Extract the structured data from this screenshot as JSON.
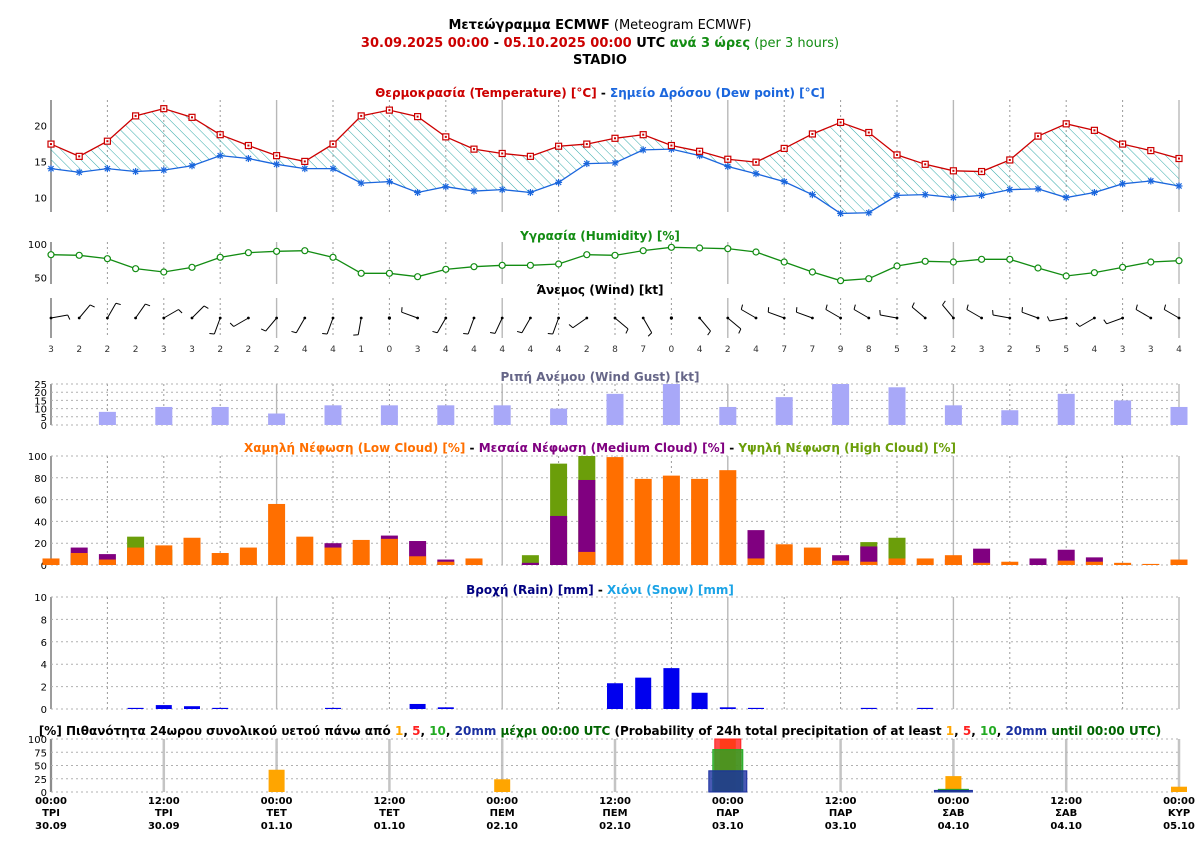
{
  "header": {
    "line1_bold": "Μετεώγραμμα ECMWF",
    "line1_rest": " (Meteogram ECMWF)",
    "date_from": "30.09.2025 00:00",
    "date_sep": " - ",
    "date_to": "05.10.2025 00:00",
    "utc": " UTC ",
    "step_bold": "ανά 3 ώρες",
    "step_rest": " (per 3 hours)",
    "station": "STADIO"
  },
  "colors": {
    "temperature": "#cc0000",
    "dew_point": "#1a66dd",
    "hatch": "#33aaaa",
    "humidity": "#128c12",
    "gust": "#a8a8f8",
    "low_cloud": "#ff6f00",
    "medium_cloud": "#800080",
    "high_cloud": "#6b9e0a",
    "rain": "#0000ee",
    "prob_1mm": "#ffa500",
    "prob_5mm": "#ff2020",
    "prob_10mm": "#22aa22",
    "prob_20mm": "#1a2fa0"
  },
  "chart_data": [
    {
      "id": "temp",
      "type": "line",
      "title_parts": [
        {
          "text": "Θερμοκρασία (Temperature) [°C]",
          "color": "#cc0000"
        },
        {
          "text": " - ",
          "color": "#000000"
        },
        {
          "text": "Σημείο Δρόσου (Dew point) [°C]",
          "color": "#1a66dd"
        }
      ],
      "yticks": [
        10,
        15,
        20
      ],
      "ylim": [
        8,
        23.5
      ],
      "series": [
        {
          "name": "Θερμοκρασία (Temperature) [°C]",
          "values": [
            17.4,
            15.7,
            17.8,
            21.3,
            22.3,
            21.1,
            18.7,
            17.2,
            15.8,
            15.0,
            17.4,
            21.3,
            22.1,
            21.2,
            18.4,
            16.7,
            16.1,
            15.7,
            17.1,
            17.4,
            18.2,
            18.7,
            17.2,
            16.4,
            15.3,
            14.9,
            16.8,
            18.8,
            20.4,
            19.0,
            15.9,
            14.6,
            13.7,
            13.6,
            15.2,
            18.5,
            20.2,
            19.3,
            17.4,
            16.5,
            15.4
          ]
        },
        {
          "name": "Σημείο Δρόσου (Dew point) [°C]",
          "values": [
            14.0,
            13.5,
            14.0,
            13.6,
            13.8,
            14.4,
            15.8,
            15.4,
            14.6,
            14.0,
            14.0,
            12.0,
            12.2,
            10.7,
            11.5,
            10.9,
            11.1,
            10.7,
            12.1,
            14.7,
            14.8,
            16.6,
            16.7,
            15.8,
            14.3,
            13.3,
            12.2,
            10.4,
            7.8,
            7.9,
            10.3,
            10.4,
            10.0,
            10.3,
            11.1,
            11.2,
            10.0,
            10.7,
            11.9,
            12.3,
            11.6
          ]
        }
      ]
    },
    {
      "id": "humidity",
      "type": "line",
      "title_parts": [
        {
          "text": "Υγρασία (Humidity) [%]",
          "color": "#128c12"
        }
      ],
      "yticks": [
        50,
        100
      ],
      "ylim": [
        40,
        103
      ],
      "series": [
        {
          "name": "Υγρασία (Humidity) [%]",
          "values": [
            84,
            83,
            78,
            63,
            58,
            65,
            80,
            87,
            89,
            90,
            80,
            56,
            56,
            51,
            62,
            66,
            68,
            68,
            70,
            84,
            83,
            90,
            95,
            94,
            93,
            88,
            73,
            58,
            45,
            48,
            67,
            74,
            73,
            77,
            77,
            64,
            52,
            57,
            65,
            73,
            75
          ]
        }
      ]
    },
    {
      "id": "wind",
      "type": "table",
      "title_parts": [
        {
          "text": "Άνεμος (Wind) [kt]",
          "color": "#000000"
        }
      ],
      "speeds": [
        3,
        2,
        2,
        2,
        3,
        3,
        2,
        2,
        2,
        4,
        4,
        1,
        0,
        3,
        4,
        4,
        4,
        4,
        4,
        2,
        8,
        7,
        0,
        4,
        2,
        4,
        7,
        7,
        9,
        8,
        5,
        3,
        2,
        3,
        2,
        5,
        5,
        4,
        3,
        3,
        4
      ],
      "directions_deg": [
        80,
        40,
        30,
        35,
        60,
        45,
        200,
        240,
        220,
        210,
        200,
        190,
        0,
        290,
        210,
        200,
        205,
        210,
        200,
        235,
        130,
        150,
        0,
        140,
        130,
        300,
        290,
        290,
        300,
        300,
        280,
        310,
        320,
        300,
        280,
        290,
        260,
        240,
        250,
        300,
        300
      ]
    },
    {
      "id": "gust",
      "type": "bar",
      "title_parts": [
        {
          "text": "Ριπή Ανέμου (Wind Gust) [kt]",
          "color": "#666688"
        }
      ],
      "yticks": [
        0,
        5,
        10,
        15,
        20,
        25
      ],
      "ylim": [
        0,
        25
      ],
      "x_index": [
        2,
        4,
        6,
        8,
        10,
        12,
        14,
        16,
        18,
        20,
        22,
        24,
        26,
        28,
        30,
        32,
        34,
        36,
        38,
        40
      ],
      "series": [
        {
          "name": "Ριπή Ανέμου (Wind Gust) [kt]",
          "values": [
            8,
            11,
            11,
            7,
            12,
            12,
            12,
            12,
            10,
            19,
            25,
            11,
            17,
            25,
            23,
            12,
            9,
            19,
            15,
            11
          ]
        }
      ]
    },
    {
      "id": "cloud",
      "type": "bar",
      "title_parts": [
        {
          "text": "Χαμηλή Νέφωση (Low Cloud) [%]",
          "color": "#ff6f00"
        },
        {
          "text": " - ",
          "color": "#000000"
        },
        {
          "text": "Μεσαία Νέφωση (Medium Cloud) [%]",
          "color": "#800080"
        },
        {
          "text": " - ",
          "color": "#000000"
        },
        {
          "text": "Υψηλή Νέφωση (High Cloud) [%]",
          "color": "#6b9e0a"
        }
      ],
      "yticks": [
        0,
        20,
        40,
        60,
        80,
        100
      ],
      "ylim": [
        0,
        100
      ],
      "series": [
        {
          "name": "Υψηλή Νέφωση (High Cloud) [%]",
          "values": [
            0,
            10,
            0,
            26,
            14,
            0,
            0,
            0,
            0,
            0,
            0,
            0,
            0,
            0,
            0,
            0,
            0,
            9,
            93,
            100,
            0,
            0,
            0,
            0,
            0,
            0,
            0,
            0,
            0,
            21,
            25,
            0,
            0,
            0,
            0,
            0,
            0,
            0,
            0,
            0,
            0
          ]
        },
        {
          "name": "Μεσαία Νέφωση (Medium Cloud) [%]",
          "values": [
            0,
            16,
            10,
            0,
            0,
            0,
            0,
            0,
            0,
            0,
            20,
            0,
            27,
            22,
            5,
            0,
            0,
            2,
            45,
            78,
            0,
            0,
            0,
            0,
            0,
            32,
            0,
            0,
            9,
            17,
            0,
            0,
            5,
            15,
            0,
            6,
            14,
            7,
            0,
            0,
            0
          ]
        },
        {
          "name": "Χαμηλή Νέφωση (Low Cloud) [%]",
          "values": [
            6,
            11,
            5,
            16,
            18,
            25,
            11,
            16,
            56,
            26,
            16,
            23,
            24,
            8,
            3,
            6,
            0,
            0,
            0,
            12,
            99,
            79,
            82,
            79,
            87,
            6,
            19,
            16,
            4,
            3,
            6,
            6,
            9,
            2,
            3,
            0,
            4,
            3,
            2,
            1,
            5
          ]
        }
      ]
    },
    {
      "id": "rain",
      "type": "bar",
      "title_parts": [
        {
          "text": "Βροχή (Rain) [mm]",
          "color": "#000080"
        },
        {
          "text": " - ",
          "color": "#000000"
        },
        {
          "text": "Χιόνι (Snow) [mm]",
          "color": "#1aa3e6"
        }
      ],
      "yticks": [
        0,
        2,
        4,
        6,
        8,
        10
      ],
      "ylim": [
        0,
        10
      ],
      "series": [
        {
          "name": "Βροχή (Rain) [mm]",
          "values": [
            0,
            0,
            0,
            0.1,
            0.35,
            0.25,
            0.1,
            0,
            0,
            0,
            0.1,
            0,
            0,
            0.45,
            0.15,
            0,
            0,
            0,
            0,
            0,
            2.3,
            2.8,
            3.65,
            1.45,
            0.15,
            0.1,
            0,
            0,
            0,
            0.1,
            0,
            0.1,
            0,
            0,
            0,
            0,
            0,
            0,
            0,
            0,
            0
          ]
        }
      ]
    },
    {
      "id": "probability",
      "type": "bar",
      "title_parts": [
        {
          "text": "[%] Πιθανότητα 24ωρου συνολικού υετού πάνω από ",
          "color": "#000000",
          "bold": true
        },
        {
          "text": "1",
          "color": "#ffa500",
          "bold": true
        },
        {
          "text": ", ",
          "color": "#000000",
          "bold": true
        },
        {
          "text": "5",
          "color": "#ff2020",
          "bold": true
        },
        {
          "text": ", ",
          "color": "#000000",
          "bold": true
        },
        {
          "text": "10",
          "color": "#22aa22",
          "bold": true
        },
        {
          "text": ", ",
          "color": "#000000",
          "bold": true
        },
        {
          "text": "20mm",
          "color": "#1a2fa0",
          "bold": true
        },
        {
          "text": " μέχρι 00:00 UTC",
          "color": "#006400",
          "bold": true
        },
        {
          "text": " (Probability of 24h total precipitation of at least ",
          "color": "#000000"
        },
        {
          "text": "1",
          "color": "#ffa500"
        },
        {
          "text": ", ",
          "color": "#000000"
        },
        {
          "text": "5",
          "color": "#ff2020"
        },
        {
          "text": ", ",
          "color": "#000000"
        },
        {
          "text": "10",
          "color": "#22aa22"
        },
        {
          "text": ", ",
          "color": "#000000"
        },
        {
          "text": "20mm",
          "color": "#1a2fa0"
        },
        {
          "text": " until 00:00 UTC)",
          "color": "#006400"
        }
      ],
      "yticks": [
        0,
        25,
        50,
        75,
        100
      ],
      "ylim": [
        0,
        100
      ],
      "x_index": [
        8,
        16,
        24,
        32,
        40
      ],
      "series": [
        {
          "name": "1",
          "values": [
            42,
            24,
            100,
            30,
            10
          ]
        },
        {
          "name": "5",
          "values": [
            0,
            0,
            100,
            0,
            0
          ]
        },
        {
          "name": "10",
          "values": [
            0,
            0,
            80,
            5,
            0
          ]
        },
        {
          "name": "20mm",
          "values": [
            0,
            0,
            40,
            3,
            0
          ]
        }
      ]
    }
  ],
  "time_axis": {
    "labels": [
      {
        "index": 0,
        "time": "00:00",
        "day": "ΤΡΙ",
        "date": "30.09"
      },
      {
        "index": 4,
        "time": "12:00",
        "day": "ΤΡΙ",
        "date": "30.09"
      },
      {
        "index": 8,
        "time": "00:00",
        "day": "ΤΕΤ",
        "date": "01.10"
      },
      {
        "index": 12,
        "time": "12:00",
        "day": "ΤΕΤ",
        "date": "01.10"
      },
      {
        "index": 16,
        "time": "00:00",
        "day": "ΠΕΜ",
        "date": "02.10"
      },
      {
        "index": 20,
        "time": "12:00",
        "day": "ΠΕΜ",
        "date": "02.10"
      },
      {
        "index": 24,
        "time": "00:00",
        "day": "ΠΑΡ",
        "date": "03.10"
      },
      {
        "index": 28,
        "time": "12:00",
        "day": "ΠΑΡ",
        "date": "03.10"
      },
      {
        "index": 32,
        "time": "00:00",
        "day": "ΣΑΒ",
        "date": "04.10"
      },
      {
        "index": 36,
        "time": "12:00",
        "day": "ΣΑΒ",
        "date": "04.10"
      },
      {
        "index": 40,
        "time": "00:00",
        "day": "ΚΥΡ",
        "date": "05.10"
      }
    ]
  }
}
